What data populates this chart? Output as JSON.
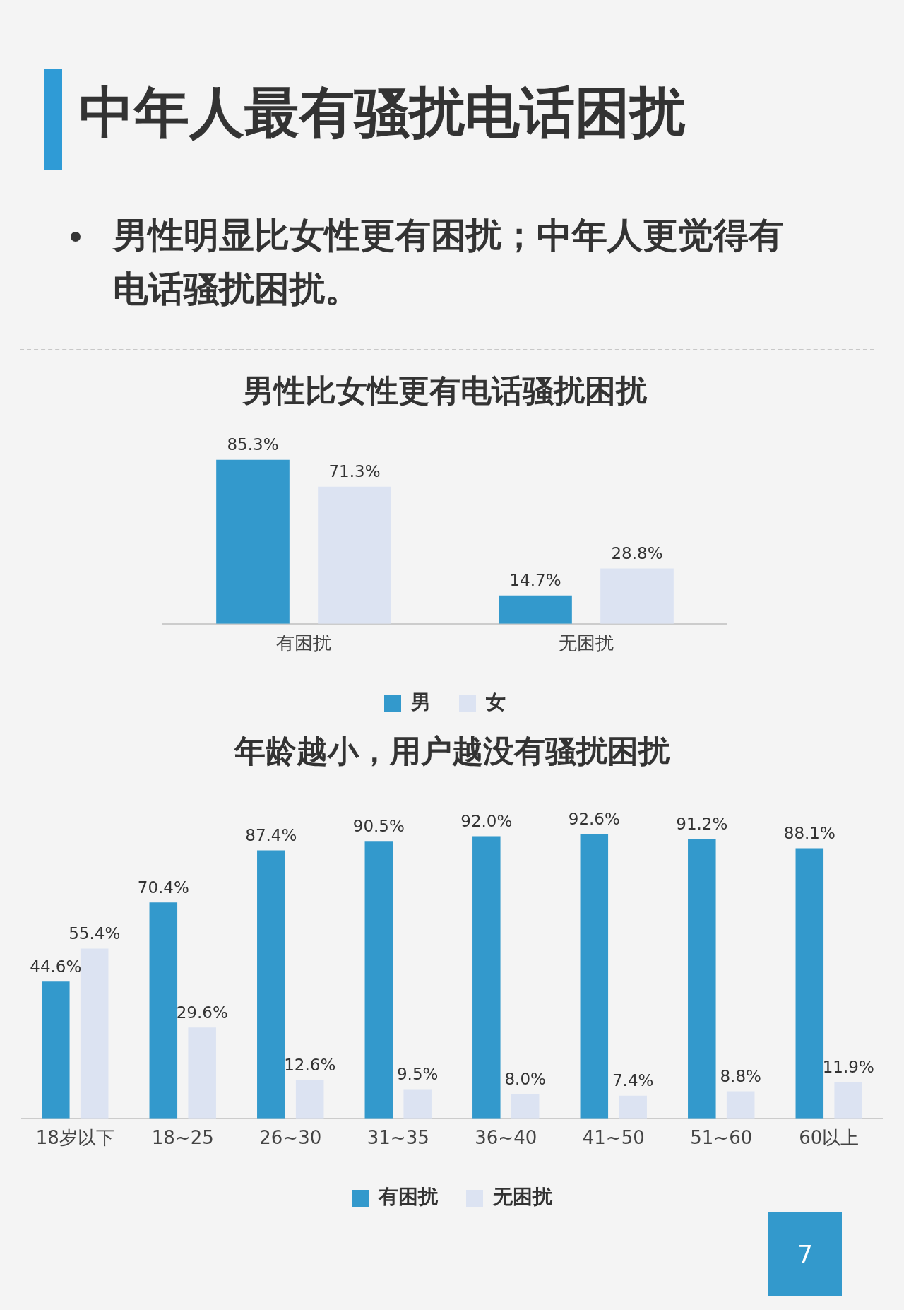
{
  "chart_data": [
    {
      "type": "other",
      "title": "中年人最有骚扰电话困扰",
      "annotations": [
        "男性明显比女性更有困扰；中年人更觉得有电话骚扰困扰。",
        "7"
      ]
    },
    {
      "type": "bar",
      "title": "男性比女性更有电话骚扰困扰",
      "categories": [
        "有困扰",
        "无困扰"
      ],
      "legend": "bottom",
      "grid": false,
      "series": [
        {
          "name": "男",
          "color": "#3399cc",
          "values": [
            85.3,
            14.7
          ],
          "value_labels": [
            "85.3%",
            "14.7%"
          ]
        },
        {
          "name": "女",
          "color": "#dce3f2",
          "values": [
            71.3,
            28.8
          ],
          "value_labels": [
            "71.3%",
            "28.8%"
          ]
        }
      ]
    },
    {
      "type": "bar",
      "title": "年龄越小，用户越没有骚扰困扰",
      "categories": [
        "18岁以下",
        "18~25",
        "26~30",
        "31~35",
        "36~40",
        "41~50",
        "51~60",
        "60以上"
      ],
      "legend": "bottom",
      "grid": false,
      "series": [
        {
          "name": "有困扰",
          "color": "#3399cc",
          "values": [
            44.6,
            70.4,
            87.4,
            90.5,
            92.0,
            92.6,
            91.2,
            88.1
          ],
          "value_labels": [
            "44.6%",
            "70.4%",
            "87.4%",
            "90.5%",
            "92.0%",
            "92.6%",
            "91.2%",
            "88.1%"
          ]
        },
        {
          "name": "无困扰",
          "color": "#dce3f2",
          "values": [
            55.4,
            29.6,
            12.6,
            9.5,
            8.0,
            7.4,
            8.8,
            11.9
          ],
          "value_labels": [
            "55.4%",
            "29.6%",
            "12.6%",
            "9.5%",
            "8.0%",
            "7.4%",
            "8.8%",
            "11.9%"
          ]
        }
      ]
    }
  ]
}
